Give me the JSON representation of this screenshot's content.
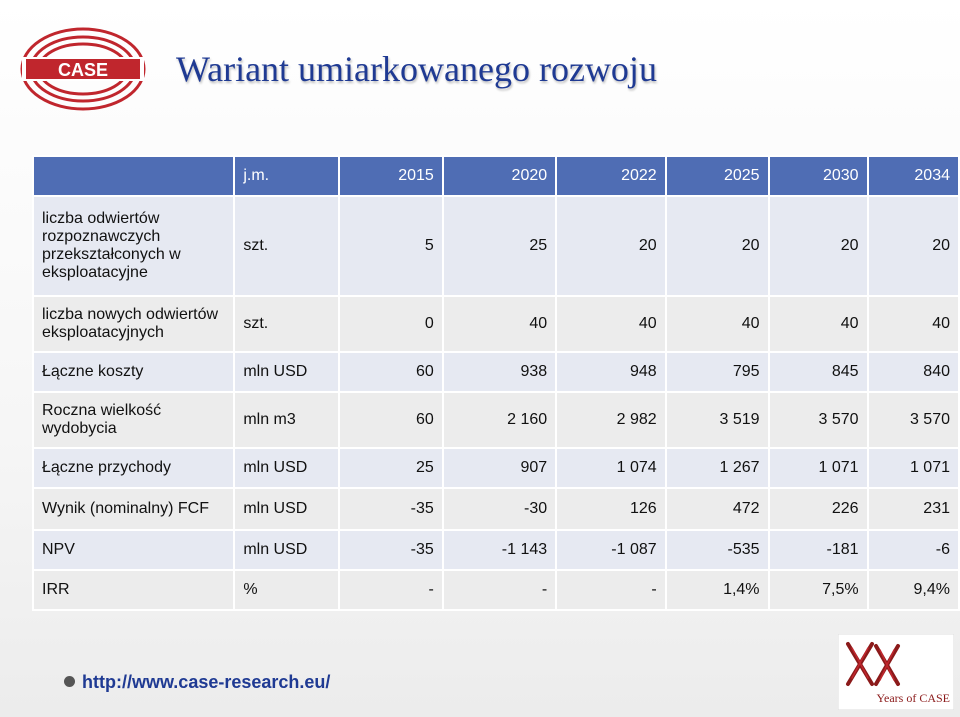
{
  "slide": {
    "logo_text": "CASE",
    "title": "Wariant umiarkowanego rozwoju",
    "footer_url": "http://www.case-research.eu/",
    "anniversary_label": "Years of CASE"
  },
  "colors": {
    "title": "#1f3a93",
    "header_bg": "#4f6db4",
    "row_bg": "#e6e9f2",
    "logo_red": "#c0262d"
  },
  "table": {
    "header": [
      "",
      "j.m.",
      "2015",
      "2020",
      "2022",
      "2025",
      "2030",
      "2034"
    ],
    "rows": [
      [
        "liczba odwiertów rozpoznawczych przekształconych w eksploatacyjne",
        "szt.",
        "5",
        "25",
        "20",
        "20",
        "20",
        "20"
      ],
      [
        "liczba nowych odwiertów eksploatacyjnych",
        "szt.",
        "0",
        "40",
        "40",
        "40",
        "40",
        "40"
      ],
      [
        "Łączne koszty",
        "mln USD",
        "60",
        "938",
        "948",
        "795",
        "845",
        "840"
      ],
      [
        "Roczna wielkość wydobycia",
        "mln m3",
        "60",
        "2 160",
        "2 982",
        "3 519",
        "3 570",
        "3 570"
      ],
      [
        "Łączne przychody",
        "mln USD",
        "25",
        "907",
        "1 074",
        "1 267",
        "1 071",
        "1 071"
      ],
      [
        "Wynik (nominalny) FCF",
        "mln USD",
        "-35",
        "-30",
        "126",
        "472",
        "226",
        "231"
      ],
      [
        "NPV",
        "mln USD",
        "-35",
        "-1 143",
        "-1 087",
        "-535",
        "-181",
        "-6"
      ],
      [
        "IRR",
        "%",
        "-",
        "-",
        "-",
        "1,4%",
        "7,5%",
        "9,4%"
      ]
    ]
  }
}
